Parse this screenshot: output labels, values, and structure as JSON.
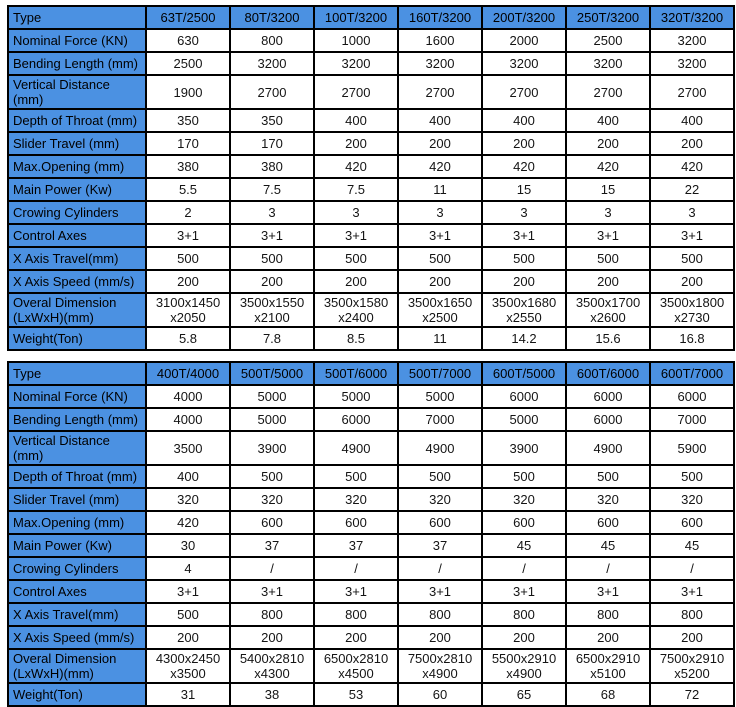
{
  "colors": {
    "header_bg": "#4b91e2",
    "border": "#000000",
    "cell_bg": "#ffffff",
    "text": "#141414",
    "page_bg": "#ffffff"
  },
  "tables": [
    {
      "corner_label": "Type",
      "column_headers": [
        "63T/2500",
        "80T/3200",
        "100T/3200",
        "160T/3200",
        "200T/3200",
        "250T/3200",
        "320T/3200"
      ],
      "rows": [
        {
          "label": "Nominal Force (KN)",
          "values": [
            "630",
            "800",
            "1000",
            "1600",
            "2000",
            "2500",
            "3200"
          ]
        },
        {
          "label": "Bending Length (mm)",
          "values": [
            "2500",
            "3200",
            "3200",
            "3200",
            "3200",
            "3200",
            "3200"
          ]
        },
        {
          "label": "Vertical Distance (mm)",
          "values": [
            "1900",
            "2700",
            "2700",
            "2700",
            "2700",
            "2700",
            "2700"
          ]
        },
        {
          "label": "Depth of Throat (mm)",
          "values": [
            "350",
            "350",
            "400",
            "400",
            "400",
            "400",
            "400"
          ]
        },
        {
          "label": "Slider Travel (mm)",
          "values": [
            "170",
            "170",
            "200",
            "200",
            "200",
            "200",
            "200"
          ]
        },
        {
          "label": "Max.Opening (mm)",
          "values": [
            "380",
            "380",
            "420",
            "420",
            "420",
            "420",
            "420"
          ]
        },
        {
          "label": "Main Power (Kw)",
          "values": [
            "5.5",
            "7.5",
            "7.5",
            "11",
            "15",
            "15",
            "22"
          ]
        },
        {
          "label": "Crowing Cylinders",
          "values": [
            "2",
            "3",
            "3",
            "3",
            "3",
            "3",
            "3"
          ]
        },
        {
          "label": "Control Axes",
          "values": [
            "3+1",
            "3+1",
            "3+1",
            "3+1",
            "3+1",
            "3+1",
            "3+1"
          ]
        },
        {
          "label": "X Axis Travel(mm)",
          "values": [
            "500",
            "500",
            "500",
            "500",
            "500",
            "500",
            "500"
          ]
        },
        {
          "label": "X Axis Speed (mm/s)",
          "values": [
            "200",
            "200",
            "200",
            "200",
            "200",
            "200",
            "200"
          ]
        },
        {
          "label": "Overal Dimension\n(LxWxH)(mm)",
          "values": [
            "3100x1450\nx2050",
            "3500x1550\nx2100",
            "3500x1580\nx2400",
            "3500x1650\nx2500",
            "3500x1680\nx2550",
            "3500x1700\nx2600",
            "3500x1800\nx2730"
          ]
        },
        {
          "label": "Weight(Ton)",
          "values": [
            "5.8",
            "7.8",
            "8.5",
            "11",
            "14.2",
            "15.6",
            "16.8"
          ]
        }
      ]
    },
    {
      "corner_label": "Type",
      "column_headers": [
        "400T/4000",
        "500T/5000",
        "500T/6000",
        "500T/7000",
        "600T/5000",
        "600T/6000",
        "600T/7000"
      ],
      "rows": [
        {
          "label": "Nominal Force (KN)",
          "values": [
            "4000",
            "5000",
            "5000",
            "5000",
            "6000",
            "6000",
            "6000"
          ]
        },
        {
          "label": "Bending Length (mm)",
          "values": [
            "4000",
            "5000",
            "6000",
            "7000",
            "5000",
            "6000",
            "7000"
          ]
        },
        {
          "label": "Vertical Distance (mm)",
          "values": [
            "3500",
            "3900",
            "4900",
            "4900",
            "3900",
            "4900",
            "5900"
          ]
        },
        {
          "label": "Depth of Throat (mm)",
          "values": [
            "400",
            "500",
            "500",
            "500",
            "500",
            "500",
            "500"
          ]
        },
        {
          "label": "Slider Travel (mm)",
          "values": [
            "320",
            "320",
            "320",
            "320",
            "320",
            "320",
            "320"
          ]
        },
        {
          "label": "Max.Opening (mm)",
          "values": [
            "420",
            "600",
            "600",
            "600",
            "600",
            "600",
            "600"
          ]
        },
        {
          "label": "Main Power (Kw)",
          "values": [
            "30",
            "37",
            "37",
            "37",
            "45",
            "45",
            "45"
          ]
        },
        {
          "label": "Crowing Cylinders",
          "values": [
            "4",
            "/",
            "/",
            "/",
            "/",
            "/",
            "/"
          ]
        },
        {
          "label": "Control Axes",
          "values": [
            "3+1",
            "3+1",
            "3+1",
            "3+1",
            "3+1",
            "3+1",
            "3+1"
          ]
        },
        {
          "label": "X Axis Travel(mm)",
          "values": [
            "500",
            "800",
            "800",
            "800",
            "800",
            "800",
            "800"
          ]
        },
        {
          "label": "X Axis Speed (mm/s)",
          "values": [
            "200",
            "200",
            "200",
            "200",
            "200",
            "200",
            "200"
          ]
        },
        {
          "label": "Overal Dimension\n(LxWxH)(mm)",
          "values": [
            "4300x2450\nx3500",
            "5400x2810\nx4300",
            "6500x2810\nx4500",
            "7500x2810\nx4900",
            "5500x2910\nx4900",
            "6500x2910\nx5100",
            "7500x2910\nx5200"
          ]
        },
        {
          "label": "Weight(Ton)",
          "values": [
            "31",
            "38",
            "53",
            "60",
            "65",
            "68",
            "72"
          ]
        }
      ]
    }
  ]
}
